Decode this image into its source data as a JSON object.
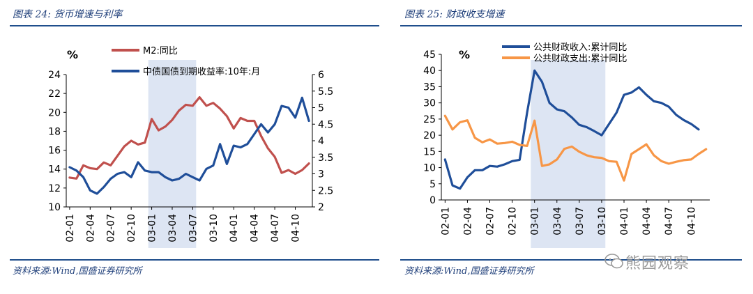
{
  "charts": [
    {
      "figure_title": "图表 24:  货币增速与利率",
      "source": "资料来源:Wind,国盛证券研究所",
      "colors": {
        "m2": "#c0504d",
        "bond": "#1f4e99",
        "shade": "#dde5f3",
        "rule": "#1f4e8c"
      }
    },
    {
      "figure_title": "图表 25:  财政收支增速",
      "source": "资料来源:Wind,国盛证券研究所",
      "colors": {
        "revenue": "#1f4e99",
        "expenditure": "#f79646",
        "shade": "#dde5f3",
        "rule": "#1f4e8c"
      }
    }
  ],
  "watermark": "熊园观察",
  "chart_data": [
    {
      "type": "line",
      "unit_label": "%",
      "categories": [
        "02-01",
        "02-02",
        "02-03",
        "02-04",
        "02-05",
        "02-06",
        "02-07",
        "02-08",
        "02-09",
        "02-10",
        "02-11",
        "02-12",
        "03-01",
        "03-02",
        "03-03",
        "03-04",
        "03-05",
        "03-06",
        "03-07",
        "03-08",
        "03-09",
        "03-10",
        "03-11",
        "03-12",
        "04-01",
        "04-02",
        "04-03",
        "04-04",
        "04-05",
        "04-06",
        "04-07",
        "04-08",
        "04-09",
        "04-10",
        "04-11",
        "04-12"
      ],
      "tick_labels": [
        "02-01",
        "02-04",
        "02-07",
        "02-10",
        "03-01",
        "03-04",
        "03-07",
        "03-10",
        "04-01",
        "04-04",
        "04-07",
        "04-10"
      ],
      "shaded_range": [
        "03-01",
        "03-07"
      ],
      "left_axis": {
        "ylim": [
          10,
          24
        ],
        "ticks": [
          10,
          12,
          14,
          16,
          18,
          20,
          22,
          24
        ]
      },
      "right_axis": {
        "ylim": [
          2,
          6
        ],
        "ticks": [
          "2",
          "2.5",
          "3",
          "3.5",
          "4",
          "4.5",
          "5",
          "5.5",
          "6"
        ]
      },
      "series": [
        {
          "name": "M2:同比",
          "axis": "left",
          "values": [
            13.1,
            13.0,
            14.4,
            14.1,
            14.0,
            14.7,
            14.4,
            15.4,
            16.4,
            17.0,
            16.6,
            16.8,
            19.3,
            18.1,
            18.5,
            19.2,
            20.2,
            20.8,
            20.7,
            21.6,
            20.7,
            21.0,
            20.4,
            19.6,
            18.3,
            19.4,
            19.1,
            19.1,
            17.5,
            16.2,
            15.3,
            13.6,
            13.9,
            13.5,
            13.9,
            14.6
          ]
        },
        {
          "name": "中债国债到期收益率:10年:月",
          "axis": "right",
          "values": [
            3.2,
            3.1,
            2.9,
            2.5,
            2.4,
            2.6,
            2.85,
            3.0,
            3.05,
            2.9,
            3.35,
            3.1,
            3.05,
            3.05,
            2.9,
            2.8,
            2.85,
            3.0,
            2.9,
            2.8,
            3.15,
            3.25,
            3.9,
            3.3,
            3.85,
            3.8,
            3.9,
            4.2,
            4.5,
            4.25,
            4.5,
            5.05,
            5.0,
            4.7,
            5.3,
            4.6
          ]
        }
      ]
    },
    {
      "type": "line",
      "unit_label": "%",
      "categories": [
        "02-01",
        "02-02",
        "02-03",
        "02-04",
        "02-05",
        "02-06",
        "02-07",
        "02-08",
        "02-09",
        "02-10",
        "02-11",
        "02-12",
        "03-01",
        "03-02",
        "03-03",
        "03-04",
        "03-05",
        "03-06",
        "03-07",
        "03-08",
        "03-09",
        "03-10",
        "03-11",
        "03-12",
        "04-01",
        "04-02",
        "04-03",
        "04-04",
        "04-05",
        "04-06",
        "04-07",
        "04-08",
        "04-09",
        "04-10",
        "04-11",
        "04-12"
      ],
      "tick_labels": [
        "02-01",
        "02-04",
        "02-07",
        "02-10",
        "03-01",
        "03-04",
        "03-07",
        "03-10",
        "04-01",
        "04-04",
        "04-07",
        "04-10"
      ],
      "shaded_range": [
        "03-01",
        "03-10"
      ],
      "left_axis": {
        "ylim": [
          0,
          45
        ],
        "ticks": [
          0,
          5,
          10,
          15,
          20,
          25,
          30,
          35,
          40,
          45
        ]
      },
      "series": [
        {
          "name": "公共财政收入:累计同比",
          "values": [
            12.5,
            4.5,
            3.5,
            7.0,
            9.2,
            9.2,
            10.5,
            10.3,
            11.0,
            12.0,
            12.4,
            27.0,
            40.0,
            36.5,
            30.0,
            28.0,
            27.4,
            25.5,
            23.2,
            22.5,
            21.3,
            20.0,
            23.5,
            27.0,
            32.5,
            33.2,
            34.8,
            32.5,
            30.5,
            30.0,
            28.8,
            26.3,
            24.7,
            23.5,
            21.8,
            null
          ]
        },
        {
          "name": "公共财政支出:累计同比",
          "values": [
            26.0,
            21.8,
            24.0,
            24.6,
            19.2,
            17.8,
            18.7,
            17.4,
            17.6,
            18.0,
            17.0,
            16.7,
            24.5,
            10.5,
            11.0,
            12.5,
            15.8,
            16.5,
            14.9,
            13.8,
            13.2,
            13.0,
            12.0,
            11.8,
            6.0,
            14.2,
            15.7,
            17.2,
            13.8,
            12.0,
            11.2,
            11.8,
            12.3,
            12.5,
            14.2,
            15.7
          ]
        }
      ]
    }
  ]
}
